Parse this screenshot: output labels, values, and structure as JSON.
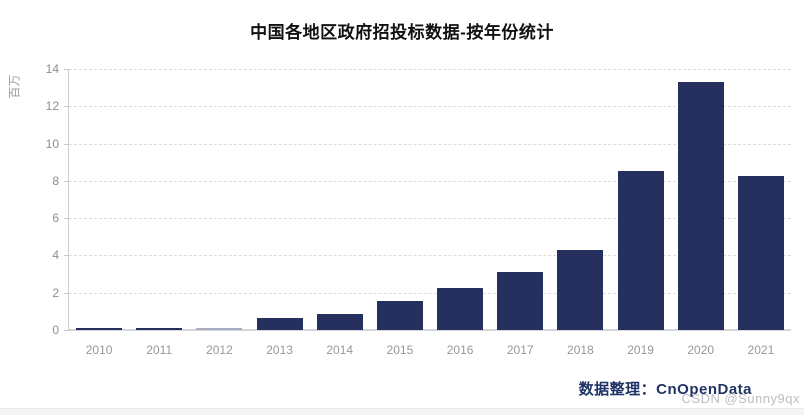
{
  "title": "中国各地区政府招投标数据-按年份统计",
  "y_axis_name": "百万",
  "footer": {
    "label": "数据整理：",
    "source": "CnOpenData"
  },
  "watermark": "CSDN @Sunny9qx",
  "colors": {
    "bar_default": "#25305f",
    "bar_2012": "#a9aec2",
    "footer_text": "#1f3366",
    "grid": "#dcdcdc",
    "axis": "#cccccc",
    "tick_text": "#8c8d93"
  },
  "chart_data": {
    "type": "bar",
    "title": "中国各地区政府招投标数据-按年份统计",
    "xlabel": "",
    "ylabel": "百万",
    "categories": [
      "2010",
      "2011",
      "2012",
      "2013",
      "2014",
      "2015",
      "2016",
      "2017",
      "2018",
      "2019",
      "2020",
      "2021"
    ],
    "values": [
      0.12,
      0.12,
      0.07,
      0.65,
      0.85,
      1.55,
      2.25,
      3.1,
      4.3,
      8.55,
      13.3,
      8.25
    ],
    "bar_colors": [
      "#25305f",
      "#25305f",
      "#a9aec2",
      "#25305f",
      "#25305f",
      "#25305f",
      "#25305f",
      "#25305f",
      "#25305f",
      "#25305f",
      "#25305f",
      "#25305f"
    ],
    "ylim": [
      0,
      14
    ],
    "yticks": [
      0,
      2,
      4,
      6,
      8,
      10,
      12,
      14
    ],
    "grid": "horizontal-dashed",
    "legend": "none"
  }
}
